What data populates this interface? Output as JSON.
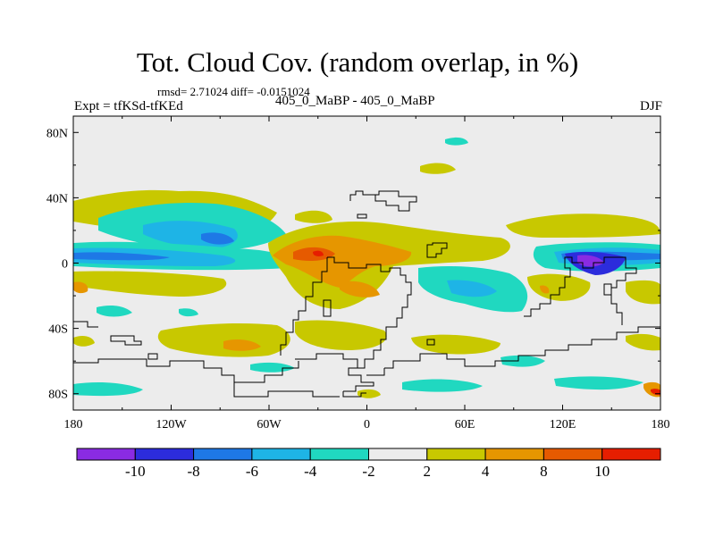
{
  "header": {
    "title": "Tot. Cloud Cov. (random overlap, in %)",
    "stats": "rmsd= 2.71024 diff= -0.0151024",
    "experiment": "Expt = tfKSd-tfKEd",
    "case": "405_0_MaBP - 405_0_MaBP",
    "season": "DJF"
  },
  "axes": {
    "x_ticks": [
      "180",
      "120W",
      "60W",
      "0",
      "60E",
      "120E",
      "180"
    ],
    "y_ticks": [
      "80N",
      "40N",
      "0",
      "40S",
      "80S"
    ]
  },
  "colorbar": {
    "labels": [
      "-10",
      "-8",
      "-6",
      "-4",
      "-2",
      "2",
      "4",
      "8",
      "10"
    ],
    "colors": [
      "#8a2be2",
      "#2c2cdc",
      "#1e78e6",
      "#1eb4e6",
      "#20d8c0",
      "#ececec",
      "#c8c800",
      "#e69600",
      "#e65a00",
      "#e61e00"
    ]
  },
  "chart_data": {
    "type": "heatmap",
    "title": "Tot. Cloud Cov. (random overlap, in %)",
    "variable": "Total cloud cover difference (%)",
    "xlim": [
      -180,
      180
    ],
    "ylim": [
      -90,
      90
    ],
    "levels": [
      -10,
      -8,
      -6,
      -4,
      -2,
      2,
      4,
      8,
      10
    ],
    "colors": [
      "#8a2be2",
      "#2c2cdc",
      "#1e78e6",
      "#1eb4e6",
      "#20d8c0",
      "#ececec",
      "#c8c800",
      "#e69600",
      "#e65a00",
      "#e61e00"
    ],
    "background_color": "#ececec",
    "coast_color": "#000000",
    "regions": [
      {
        "lon": -135,
        "lat": 33,
        "value": -3
      },
      {
        "lon": -110,
        "lat": 15,
        "value": -5
      },
      {
        "lon": -150,
        "lat": 0,
        "value": -7
      },
      {
        "lon": -115,
        "lat": 0,
        "value": -6
      },
      {
        "lon": -70,
        "lat": 0,
        "value": -5
      },
      {
        "lon": -20,
        "lat": 5,
        "value": 9
      },
      {
        "lon": -10,
        "lat": 2,
        "value": 6
      },
      {
        "lon": 20,
        "lat": 8,
        "value": 3
      },
      {
        "lon": 60,
        "lat": -12,
        "value": -3
      },
      {
        "lon": 90,
        "lat": 18,
        "value": 3
      },
      {
        "lon": 145,
        "lat": 0,
        "value": -10
      },
      {
        "lon": 170,
        "lat": 0,
        "value": -6
      },
      {
        "lon": 160,
        "lat": 15,
        "value": 3
      },
      {
        "lon": 110,
        "lat": -25,
        "value": 3
      },
      {
        "lon": -80,
        "lat": -50,
        "value": 3
      },
      {
        "lon": -70,
        "lat": -50,
        "value": 6
      },
      {
        "lon": -150,
        "lat": -40,
        "value": -3
      },
      {
        "lon": -20,
        "lat": -15,
        "value": 6
      },
      {
        "lon": 20,
        "lat": -60,
        "value": 3
      },
      {
        "lon": 80,
        "lat": -80,
        "value": -3
      },
      {
        "lon": -170,
        "lat": -80,
        "value": -3
      },
      {
        "lon": -170,
        "lat": -15,
        "value": 6
      },
      {
        "lon": 20,
        "lat": 70,
        "value": -3
      }
    ]
  }
}
